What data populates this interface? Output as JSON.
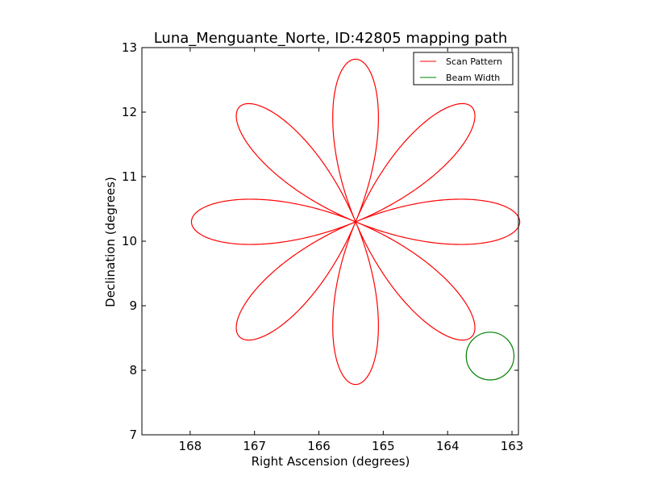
{
  "chart_data": {
    "type": "line",
    "title": "Luna_Menguante_Norte, ID:42805 mapping path",
    "xlabel": "Right Ascension (degrees)",
    "ylabel": "Declination (degrees)",
    "xlim": [
      168.75,
      162.9
    ],
    "ylim": [
      7,
      13
    ],
    "x_reversed": true,
    "xticks": [
      168,
      167,
      166,
      165,
      164,
      163
    ],
    "yticks": [
      7,
      8,
      9,
      10,
      11,
      12,
      13
    ],
    "legend_position": "top-right",
    "grid": false,
    "series": [
      {
        "name": "Scan Pattern",
        "kind": "rose-curve",
        "color": "#ff0000",
        "center": [
          165.43,
          10.3
        ],
        "radius_ra": 2.55,
        "radius_dec": 2.52,
        "petals": 8
      },
      {
        "name": "Beam Width",
        "kind": "circle",
        "color": "#008000",
        "center": [
          163.34,
          8.22
        ],
        "radius_dec": 0.37
      }
    ],
    "legend": [
      {
        "label": "Scan Pattern",
        "color": "#ff0000"
      },
      {
        "label": "Beam Width",
        "color": "#008000"
      }
    ]
  }
}
